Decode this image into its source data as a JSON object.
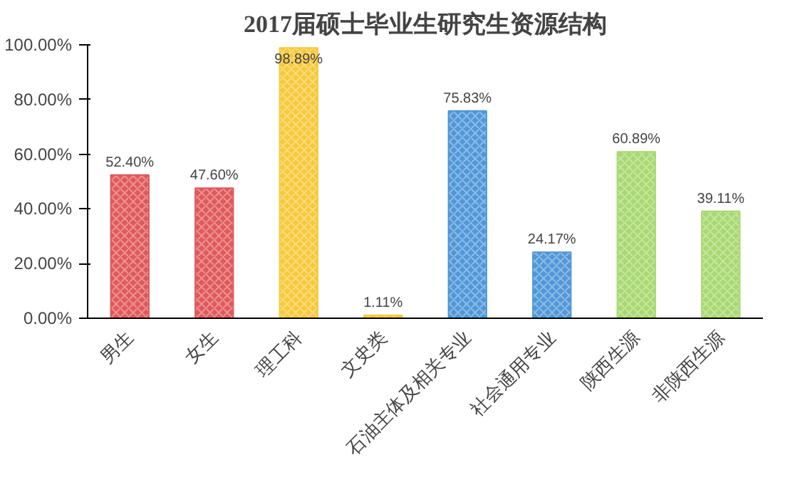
{
  "chart_data": {
    "type": "bar",
    "title": "2017届硕士毕业生研究生资源结构",
    "categories": [
      "男生",
      "女生",
      "理工科",
      "文史类",
      "石油主体及相关专业",
      "社会通用专业",
      "陕西生源",
      "非陕西生源"
    ],
    "values": [
      52.4,
      47.6,
      98.89,
      1.11,
      75.83,
      24.17,
      60.89,
      39.11
    ],
    "value_labels": [
      "52.40%",
      "47.60%",
      "98.89%",
      "1.11%",
      "75.83%",
      "24.17%",
      "60.89%",
      "39.11%"
    ],
    "colors": [
      "#e0585a",
      "#e0585a",
      "#f7c93a",
      "#f7c93a",
      "#4f97d8",
      "#4f97d8",
      "#a8d870",
      "#a8d870"
    ],
    "ylim": [
      0,
      100
    ],
    "yticks": [
      {
        "value": 0,
        "label": "0.00%"
      },
      {
        "value": 20,
        "label": "20.00%"
      },
      {
        "value": 40,
        "label": "40.00%"
      },
      {
        "value": 60,
        "label": "60.00%"
      },
      {
        "value": 80,
        "label": "80.00%"
      },
      {
        "value": 100,
        "label": "100.00%"
      }
    ],
    "grid": false
  }
}
